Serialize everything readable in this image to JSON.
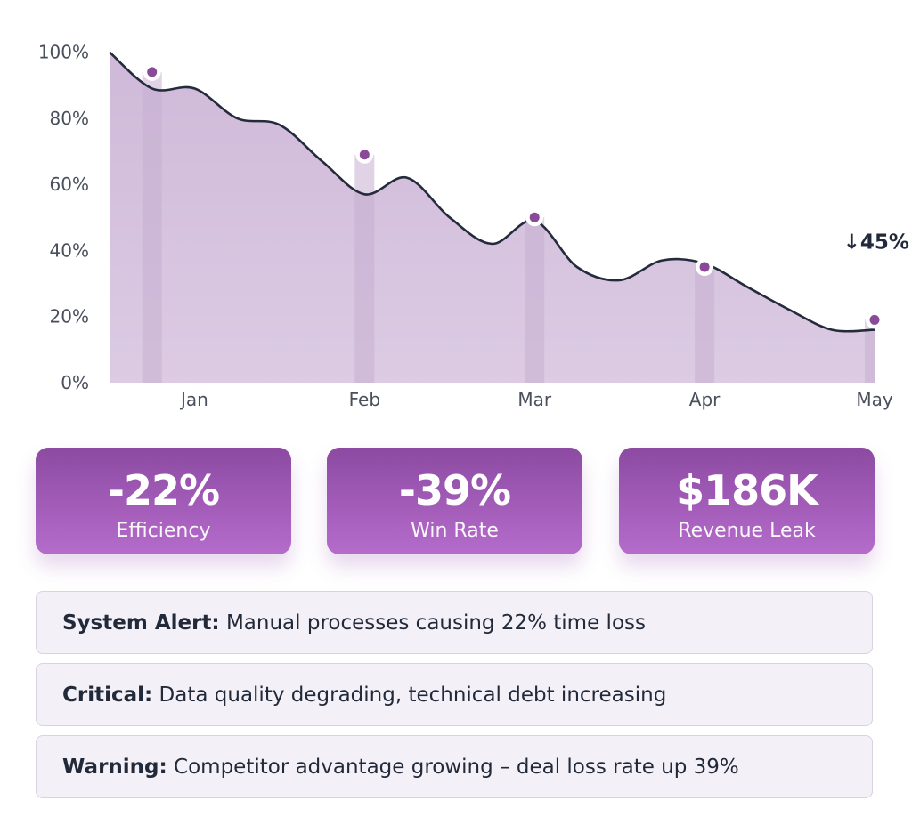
{
  "chart_data": {
    "type": "area",
    "categories": [
      "Jan",
      "Feb",
      "Mar",
      "Apr",
      "May"
    ],
    "x": [
      0.0,
      0.25,
      0.5,
      0.75,
      1.0,
      1.25,
      1.5,
      1.75,
      2.0,
      2.25,
      2.5,
      2.75,
      3.0,
      3.25,
      3.5,
      3.75,
      4.0,
      4.25,
      4.5
    ],
    "values": [
      100,
      89,
      89,
      80,
      78,
      67,
      57,
      62,
      50,
      42,
      49,
      35,
      31,
      37,
      36,
      29,
      22,
      16,
      16
    ],
    "markers": [
      {
        "x": 0.25,
        "y": 94
      },
      {
        "x": 1.5,
        "y": 69
      },
      {
        "x": 2.5,
        "y": 50
      },
      {
        "x": 3.5,
        "y": 35
      },
      {
        "x": 4.5,
        "y": 19
      }
    ],
    "y_ticks": [
      "0%",
      "20%",
      "40%",
      "60%",
      "80%",
      "100%"
    ],
    "ylim": [
      0,
      105
    ],
    "annotation": {
      "text": "↓45%",
      "x": 4.3,
      "y": 40
    },
    "colors": {
      "fill": "#d5c2dd",
      "line": "#242b3b",
      "marker": "#8a4a99",
      "marker_ring": "#ffffff",
      "bar": "#c7afd2"
    },
    "grid": false
  },
  "metrics": [
    {
      "value": "-22%",
      "label": "Efficiency"
    },
    {
      "value": "-39%",
      "label": "Win Rate"
    },
    {
      "value": "$186K",
      "label": "Revenue Leak"
    }
  ],
  "alerts": [
    {
      "title": "System Alert:",
      "text": " Manual processes causing 22% time loss"
    },
    {
      "title": "Critical:",
      "text": " Data quality degrading, technical debt increasing"
    },
    {
      "title": "Warning:",
      "text": " Competitor advantage growing – deal loss rate up 39%"
    }
  ]
}
